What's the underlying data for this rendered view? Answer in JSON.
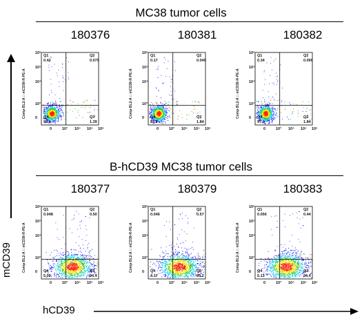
{
  "axis_titles": {
    "y": "mCD39",
    "x": "hCD39"
  },
  "panel_y_label": "Comp-BL2-A :: mCD39-R-PE-A",
  "quadrant_names": [
    "Q1",
    "Q2",
    "Q3",
    "Q4"
  ],
  "y_ticks": [
    "10⁶",
    "10⁵",
    "10⁴",
    "10³",
    "0"
  ],
  "x_ticks": [
    "0",
    "10³",
    "10⁴",
    "10⁵",
    "10⁶"
  ],
  "groups": [
    {
      "title": "MC38 tumor cells",
      "samples": [
        {
          "id": "180376",
          "q1": "0.42",
          "q2": "0.079",
          "q3": "1.39",
          "q4": "98.1"
        },
        {
          "id": "180381",
          "q1": "0.17",
          "q2": "0.049",
          "q3": "1.84",
          "q4": "97.9"
        },
        {
          "id": "180382",
          "q1": "0.34",
          "q2": "0.090",
          "q3": "1.84",
          "q4": "97.7"
        }
      ]
    },
    {
      "title": "B-hCD39 MC38 tumor cells",
      "samples": [
        {
          "id": "180377",
          "q1": "0.048",
          "q2": "0.50",
          "q3": "94.4",
          "q4": "5.00"
        },
        {
          "id": "180379",
          "q1": "0.046",
          "q2": "0.57",
          "q3": "95.2",
          "q4": "4.17"
        },
        {
          "id": "180383",
          "q1": "0.056",
          "q2": "0.44",
          "q3": "94.4",
          "q4": "5.13"
        }
      ]
    }
  ],
  "colors": {
    "low": "#1a1aff",
    "mid1": "#00c8ff",
    "mid2": "#30d030",
    "mid3": "#ffe000",
    "high": "#ff2000",
    "gate": "#000000"
  }
}
